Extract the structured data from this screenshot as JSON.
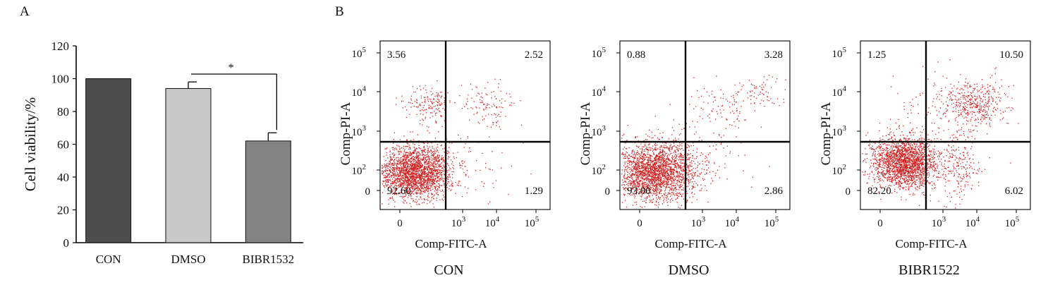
{
  "panel_a": {
    "label": "A",
    "chart_data": {
      "type": "bar",
      "title": "",
      "xlabel": "",
      "ylabel": "Cell viability/%",
      "categories": [
        "CON",
        "DMSO",
        "BIBR1532"
      ],
      "values": [
        100,
        94,
        62
      ],
      "errors": [
        0,
        4,
        5
      ],
      "colors": [
        "#4d4d4d",
        "#c8c8c8",
        "#848484"
      ],
      "ylim": [
        0,
        120
      ],
      "yticks": [
        "0",
        "20",
        "40",
        "60",
        "80",
        "100",
        "120"
      ],
      "significance": {
        "from": "DMSO",
        "to": "BIBR1532",
        "label": "*"
      },
      "grid": false
    }
  },
  "panel_b": {
    "label": "B",
    "xlabel": "Comp-FITC-A",
    "ylabel": "Comp-PI-A",
    "x_ticks": [
      {
        "base": "0",
        "exp": ""
      },
      {
        "base": "10",
        "exp": "3"
      },
      {
        "base": "10",
        "exp": "4"
      },
      {
        "base": "10",
        "exp": "5"
      }
    ],
    "y_ticks": [
      {
        "base": "0",
        "exp": ""
      },
      {
        "base": "10",
        "exp": "2"
      },
      {
        "base": "10",
        "exp": "3"
      },
      {
        "base": "10",
        "exp": "4"
      },
      {
        "base": "10",
        "exp": "5"
      }
    ],
    "dot_color": "#d41f1f",
    "plots": [
      {
        "name": "CON",
        "quadrants": {
          "upper_left": "3.56",
          "upper_right": "2.52",
          "lower_left": "92.60",
          "lower_right": "1.29"
        }
      },
      {
        "name": "DMSO",
        "quadrants": {
          "upper_left": "0.88",
          "upper_right": "3.28",
          "lower_left": "93.00",
          "lower_right": "2.86"
        }
      },
      {
        "name": "BIBR1522",
        "quadrants": {
          "upper_left": "1.25",
          "upper_right": "10.50",
          "lower_left": "82.20",
          "lower_right": "6.02"
        }
      }
    ]
  }
}
